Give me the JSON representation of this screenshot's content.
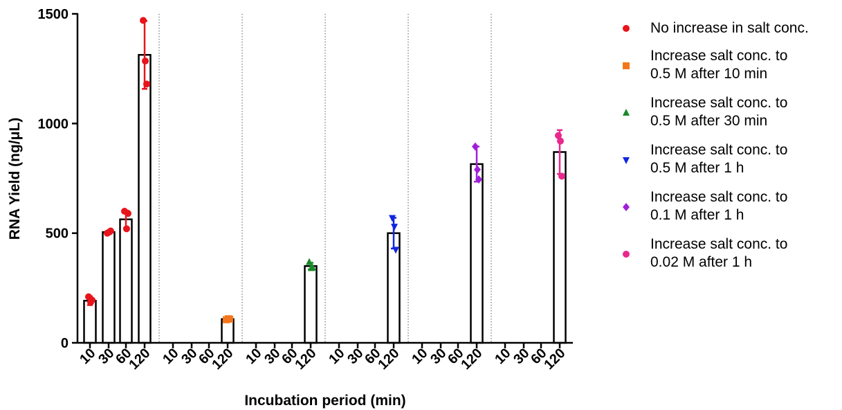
{
  "chart_data": {
    "type": "bar",
    "xlabel": "Incubation period (min)",
    "ylabel": "RNA Yield (ng/μL)",
    "ylim": [
      0,
      1500
    ],
    "yticks": [
      "0",
      "500",
      "1000",
      "1500"
    ],
    "categories": [
      "10",
      "30",
      "60",
      "120"
    ],
    "grid": false,
    "legend_position": "right",
    "series": [
      {
        "name": "No increase in salt conc.",
        "color": "#e8141c",
        "marker": "circle",
        "values": [
          192,
          505,
          563,
          1313
        ],
        "errors": [
          20,
          6,
          40,
          155
        ],
        "points": [
          [
            210,
            185,
            195
          ],
          [
            500,
            505,
            510
          ],
          [
            600,
            520,
            590
          ],
          [
            1470,
            1285,
            1180
          ]
        ]
      },
      {
        "name": "Increase salt conc. to\n0.5 M after 10 min",
        "color": "#f5761a",
        "marker": "square",
        "values": [
          null,
          null,
          null,
          108
        ],
        "errors": [
          null,
          null,
          null,
          4
        ],
        "points": [
          [],
          [],
          [],
          [
            105,
            110,
            108
          ]
        ]
      },
      {
        "name": "Increase salt conc. to\n0.5 M after 30 min",
        "color": "#1a8a2a",
        "marker": "triangle-up",
        "values": [
          null,
          null,
          null,
          350
        ],
        "errors": [
          null,
          null,
          null,
          15
        ],
        "points": [
          [],
          [],
          [],
          [
            368,
            340,
            342
          ]
        ]
      },
      {
        "name": "Increase salt conc. to\n0.5 M after 1 h",
        "color": "#1026e0",
        "marker": "triangle-down",
        "values": [
          null,
          null,
          null,
          500
        ],
        "errors": [
          null,
          null,
          null,
          70
        ],
        "points": [
          [],
          [],
          [],
          [
            570,
            530,
            425
          ]
        ]
      },
      {
        "name": "Increase salt conc. to\n0.1 M after 1 h",
        "color": "#a020d8",
        "marker": "diamond",
        "values": [
          null,
          null,
          null,
          815
        ],
        "errors": [
          null,
          null,
          null,
          80
        ],
        "points": [
          [],
          [],
          [],
          [
            895,
            790,
            745
          ]
        ]
      },
      {
        "name": "Increase salt conc. to\n0.02 M after 1 h",
        "color": "#e8288c",
        "marker": "circle",
        "values": [
          null,
          null,
          null,
          870
        ],
        "errors": [
          null,
          null,
          null,
          100
        ],
        "points": [
          [],
          [],
          [],
          [
            945,
            920,
            760
          ]
        ]
      }
    ]
  }
}
